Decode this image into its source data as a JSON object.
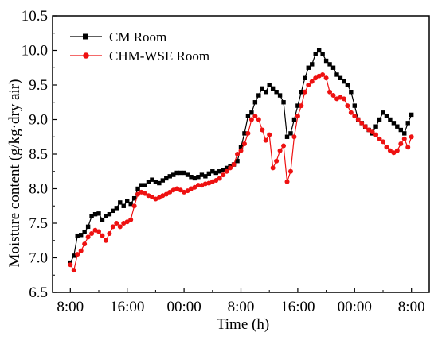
{
  "chart_data": {
    "type": "line",
    "xlabel": "Time (h)",
    "ylabel": "Moisture content (g/kg·dry air)",
    "ylim": [
      6.5,
      10.5
    ],
    "yticks": [
      6.5,
      7.0,
      7.5,
      8.0,
      8.5,
      9.0,
      9.5,
      10.0,
      10.5
    ],
    "xlim": [
      -2.5,
      50.5
    ],
    "xticks": [
      {
        "value": 0,
        "label": "8:00"
      },
      {
        "value": 8,
        "label": "16:00"
      },
      {
        "value": 16,
        "label": "00:00"
      },
      {
        "value": 24,
        "label": "8:00"
      },
      {
        "value": 32,
        "label": "16:00"
      },
      {
        "value": 40,
        "label": "00:00"
      },
      {
        "value": 48,
        "label": "8:00"
      }
    ],
    "grid": false,
    "legend_position": "top-left",
    "x": [
      0,
      0.5,
      1,
      1.5,
      2,
      2.5,
      3,
      3.5,
      4,
      4.5,
      5,
      5.5,
      6,
      6.5,
      7,
      7.5,
      8,
      8.5,
      9,
      9.5,
      10,
      10.5,
      11,
      11.5,
      12,
      12.5,
      13,
      13.5,
      14,
      14.5,
      15,
      15.5,
      16,
      16.5,
      17,
      17.5,
      18,
      18.5,
      19,
      19.5,
      20,
      20.5,
      21,
      21.5,
      22,
      22.5,
      23,
      23.5,
      24,
      24.5,
      25,
      25.5,
      26,
      26.5,
      27,
      27.5,
      28,
      28.5,
      29,
      29.5,
      30,
      30.5,
      31,
      31.5,
      32,
      32.5,
      33,
      33.5,
      34,
      34.5,
      35,
      35.5,
      36,
      36.5,
      37,
      37.5,
      38,
      38.5,
      39,
      39.5,
      40,
      40.5,
      41,
      41.5,
      42,
      42.5,
      43,
      43.5,
      44,
      44.5,
      45,
      45.5,
      46,
      46.5,
      47,
      47.5,
      48
    ],
    "series": [
      {
        "name": "CM Room",
        "color": "#000000",
        "marker": "square",
        "values": [
          6.93,
          7.03,
          7.32,
          7.33,
          7.37,
          7.45,
          7.6,
          7.63,
          7.64,
          7.55,
          7.6,
          7.63,
          7.68,
          7.72,
          7.8,
          7.75,
          7.82,
          7.78,
          7.86,
          8.0,
          8.05,
          8.05,
          8.1,
          8.13,
          8.1,
          8.08,
          8.12,
          8.15,
          8.18,
          8.2,
          8.23,
          8.23,
          8.23,
          8.2,
          8.17,
          8.15,
          8.17,
          8.2,
          8.18,
          8.22,
          8.25,
          8.23,
          8.25,
          8.27,
          8.3,
          8.32,
          8.35,
          8.4,
          8.6,
          8.8,
          9.05,
          9.1,
          9.25,
          9.35,
          9.45,
          9.4,
          9.5,
          9.45,
          9.4,
          9.35,
          9.25,
          8.75,
          8.8,
          9.0,
          9.2,
          9.4,
          9.6,
          9.75,
          9.8,
          9.95,
          10.0,
          9.95,
          9.85,
          9.8,
          9.75,
          9.65,
          9.6,
          9.55,
          9.5,
          9.4,
          9.2,
          9.0,
          8.95,
          8.9,
          8.85,
          8.8,
          8.9,
          9.0,
          9.1,
          9.05,
          9.0,
          8.95,
          8.9,
          8.85,
          8.8,
          8.95,
          9.07
        ]
      },
      {
        "name": "CHM-WSE  Room",
        "color": "#ee1111",
        "marker": "circle",
        "values": [
          6.9,
          6.82,
          7.05,
          7.1,
          7.2,
          7.3,
          7.35,
          7.4,
          7.38,
          7.32,
          7.25,
          7.35,
          7.45,
          7.5,
          7.45,
          7.5,
          7.52,
          7.55,
          7.75,
          7.92,
          7.95,
          7.93,
          7.9,
          7.88,
          7.85,
          7.87,
          7.9,
          7.92,
          7.95,
          7.98,
          8.0,
          7.98,
          7.95,
          7.97,
          8.0,
          8.02,
          8.05,
          8.05,
          8.07,
          8.08,
          8.1,
          8.12,
          8.15,
          8.2,
          8.25,
          8.3,
          8.35,
          8.5,
          8.55,
          8.65,
          8.8,
          9.0,
          9.05,
          9.0,
          8.85,
          8.7,
          8.78,
          8.3,
          8.4,
          8.55,
          8.62,
          8.1,
          8.25,
          8.75,
          9.05,
          9.2,
          9.4,
          9.5,
          9.55,
          9.6,
          9.63,
          9.65,
          9.6,
          9.4,
          9.35,
          9.3,
          9.32,
          9.3,
          9.2,
          9.1,
          9.05,
          9.0,
          8.95,
          8.9,
          8.85,
          8.82,
          8.78,
          8.72,
          8.68,
          8.6,
          8.55,
          8.52,
          8.55,
          8.65,
          8.72,
          8.6,
          8.75
        ]
      }
    ]
  }
}
